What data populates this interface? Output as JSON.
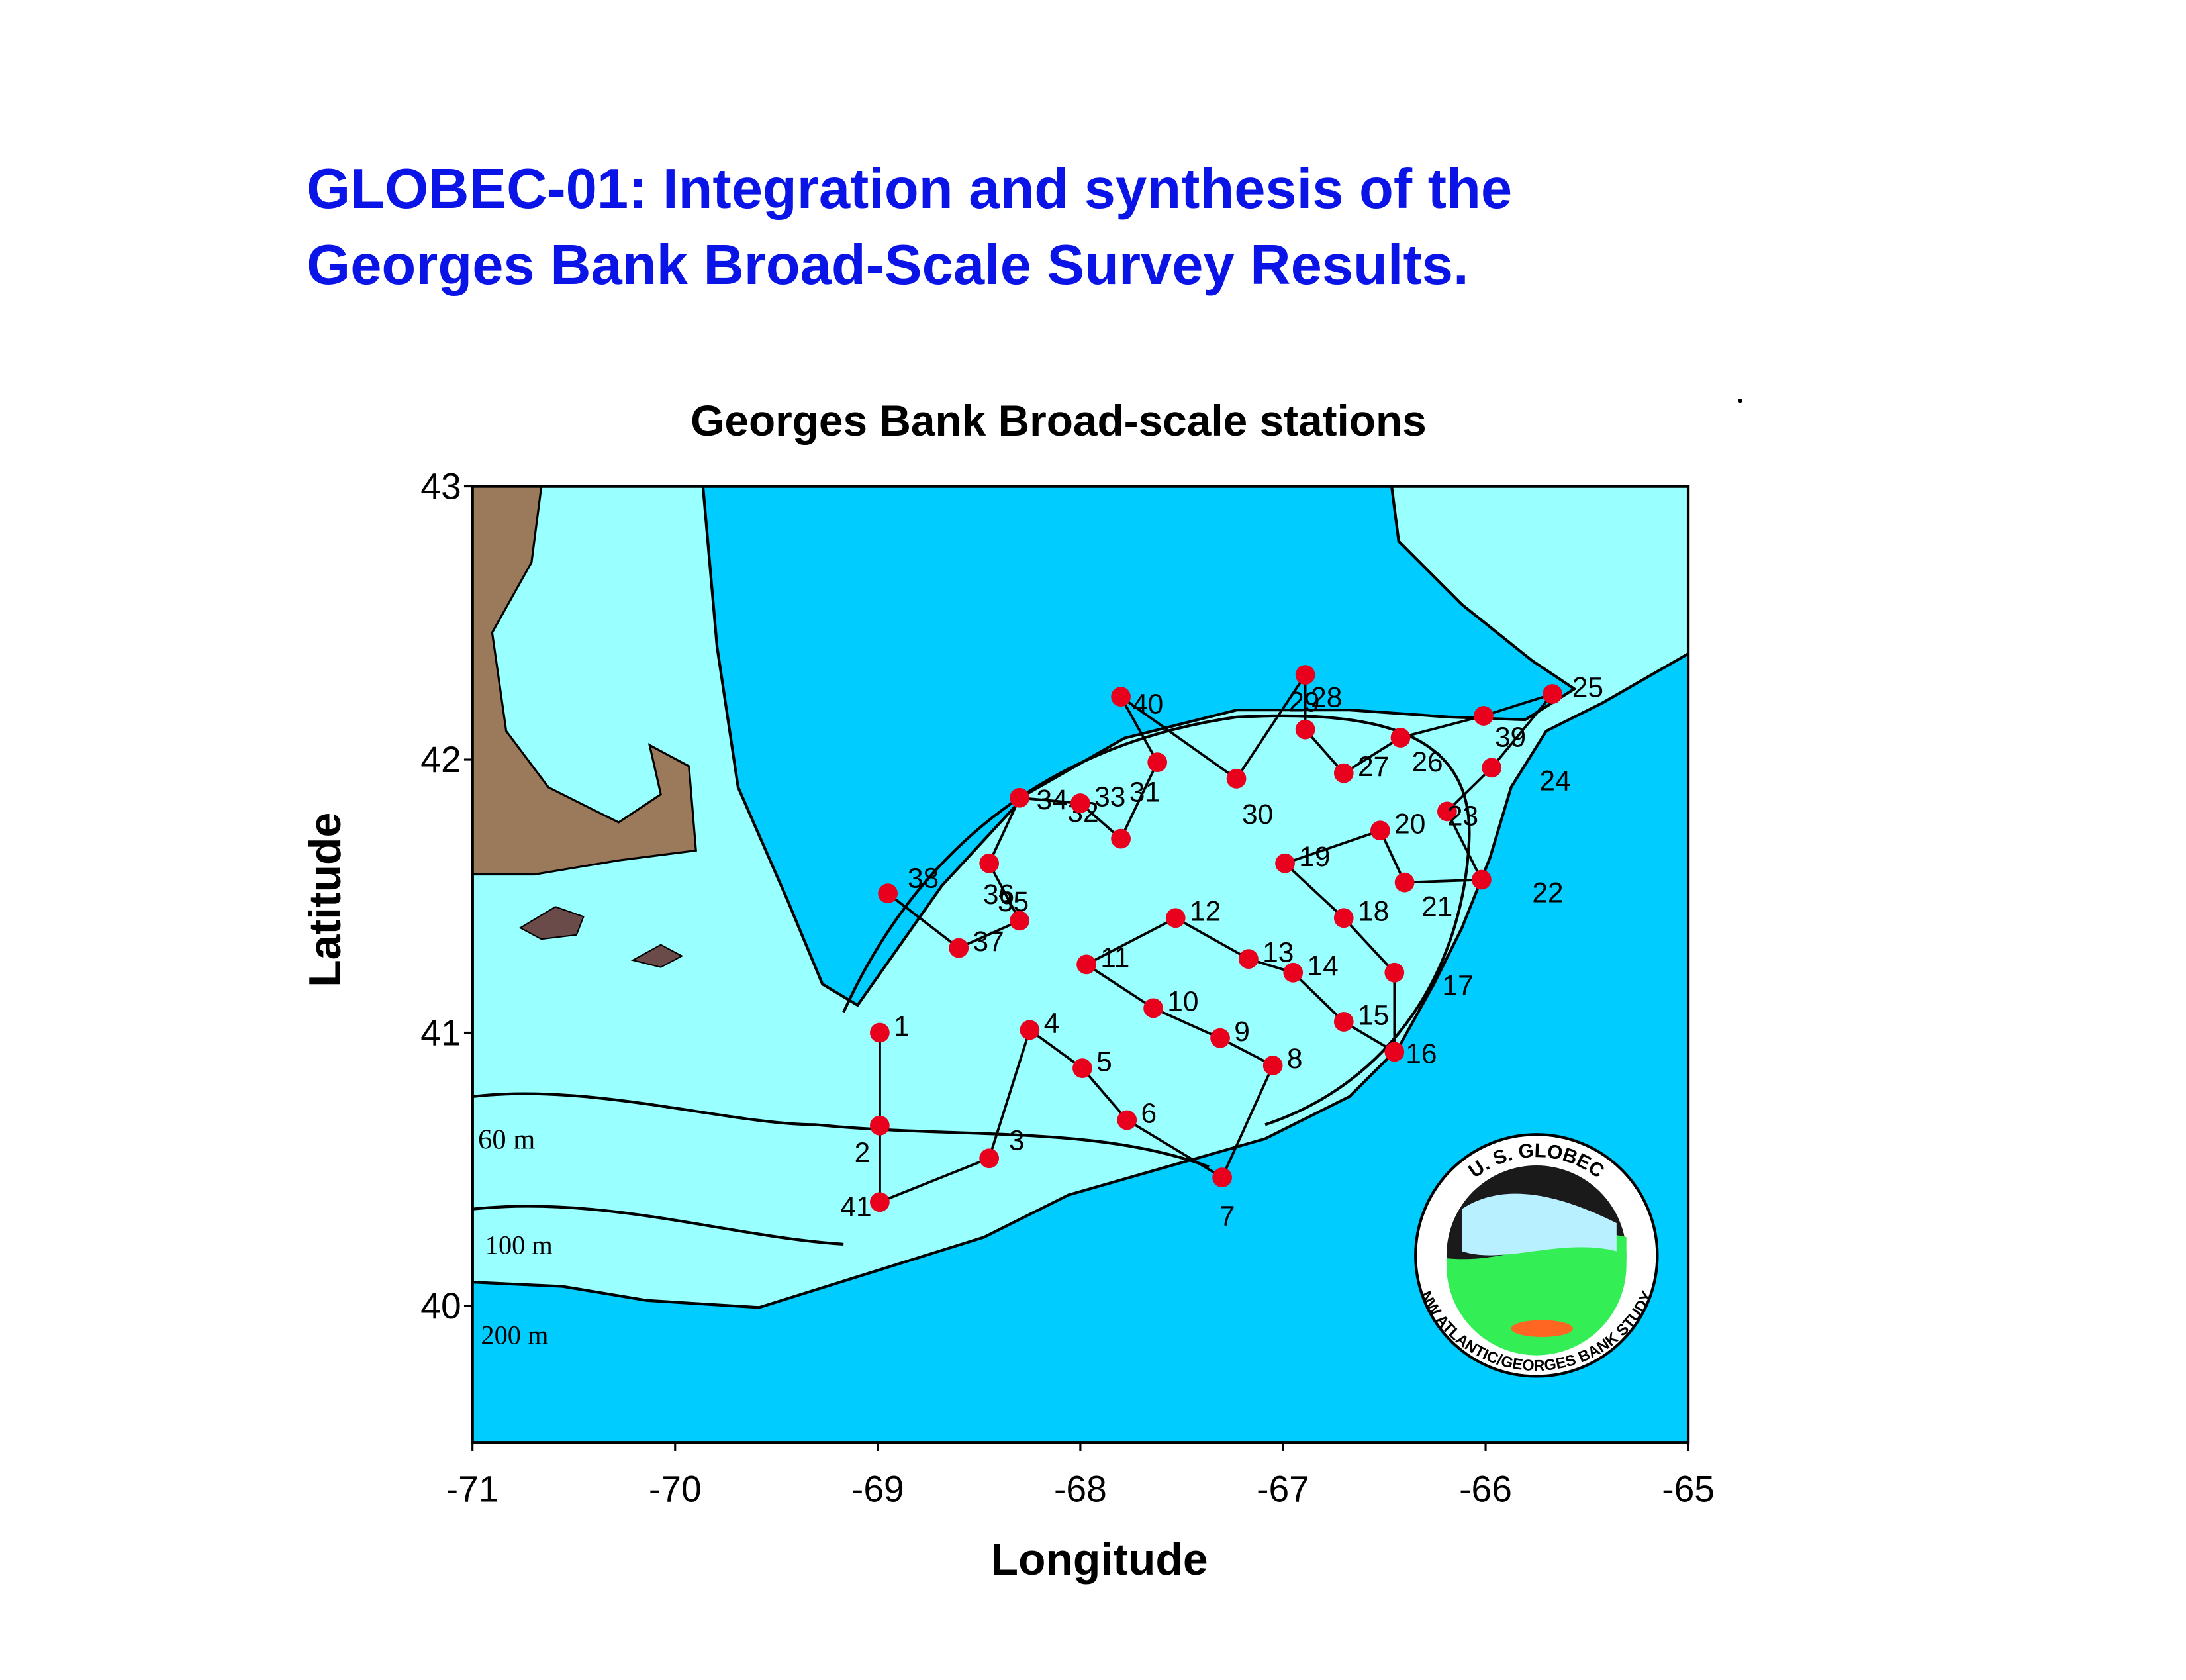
{
  "title": [
    "GLOBEC-01: Integration and synthesis of the",
    "Georges Bank Broad-Scale Survey Results."
  ],
  "chart_data": {
    "type": "scatter",
    "title": "Georges Bank Broad-scale stations",
    "x_label": "Longitude",
    "y_label": "Latitude",
    "labels": [
      "1",
      "2",
      "41",
      "3",
      "4",
      "5",
      "6",
      "7",
      "8",
      "9",
      "10",
      "11",
      "12",
      "13",
      "14",
      "15",
      "16",
      "17",
      "18",
      "19",
      "20",
      "21",
      "22",
      "23",
      "24",
      "25",
      "39",
      "26",
      "27",
      "28",
      "29",
      "30",
      "40",
      "31",
      "32",
      "33",
      "34",
      "35",
      "36",
      "37",
      "38"
    ],
    "x": [
      -68.99,
      -68.99,
      -68.99,
      -68.45,
      -68.25,
      -67.99,
      -67.77,
      -67.3,
      -67.05,
      -67.31,
      -67.64,
      -67.97,
      -67.53,
      -67.17,
      -66.95,
      -66.7,
      -66.45,
      -66.45,
      -66.7,
      -66.99,
      -66.52,
      -66.4,
      -66.02,
      -66.19,
      -65.97,
      -65.67,
      -66.01,
      -66.42,
      -66.7,
      -66.89,
      -66.89,
      -67.23,
      -67.8,
      -67.62,
      -67.8,
      -68.0,
      -68.3,
      -68.45,
      -68.3,
      -68.6,
      -68.95
    ],
    "values": [
      41.0,
      40.66,
      40.38,
      40.54,
      41.01,
      40.87,
      40.68,
      40.47,
      40.88,
      40.98,
      41.09,
      41.25,
      41.42,
      41.27,
      41.22,
      41.04,
      40.93,
      41.22,
      41.42,
      41.62,
      41.74,
      41.55,
      41.56,
      41.81,
      41.97,
      42.24,
      42.16,
      42.08,
      41.95,
      42.11,
      42.31,
      41.93,
      42.23,
      41.99,
      41.71,
      41.84,
      41.86,
      41.62,
      41.41,
      41.31,
      41.51
    ],
    "color": "#e8001c",
    "xlim": [
      -71,
      -65
    ],
    "ylim": [
      39.5,
      43
    ],
    "xticks": [
      -71,
      -70,
      -69,
      -68,
      -67,
      -66,
      -65
    ],
    "yticks": [
      40,
      41,
      42,
      43
    ],
    "contour_labels": [
      "60 m",
      "100 m",
      "200 m"
    ]
  },
  "logo": {
    "top": "U. S. GLOBEC",
    "bottom": "NW ATLANTIC/GEORGES BANK STUDY"
  }
}
